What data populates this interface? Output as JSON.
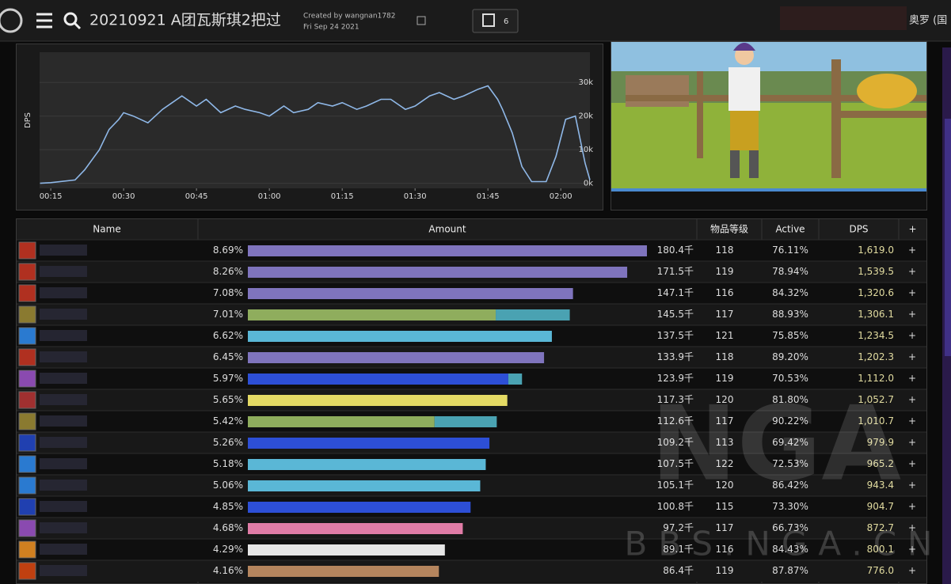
{
  "header": {
    "title": "20210921 A团瓦斯琪2把过",
    "created_by": "Created by wangnan1782",
    "date": "Fri Sep 24 2021",
    "twitch_count": "6",
    "user": "奥罗 (国"
  },
  "dps_chart": {
    "type": "line",
    "ylabel": "DPS",
    "color": "#8fb8e8",
    "x": [
      12.8,
      15,
      20,
      22,
      24,
      25,
      27,
      29,
      30,
      32,
      35,
      38,
      40,
      42,
      45,
      47,
      50,
      53,
      55,
      58,
      60,
      63,
      65,
      68,
      70,
      73,
      75,
      78,
      80,
      83,
      85,
      88,
      90,
      93,
      95,
      98,
      100,
      103,
      105,
      107,
      108,
      110,
      112,
      114,
      117,
      119,
      121,
      123,
      125,
      126
    ],
    "values": [
      0,
      0.2,
      1,
      4,
      8,
      10,
      16,
      19,
      21,
      20,
      18,
      22,
      24,
      26,
      23,
      25,
      21,
      23,
      22,
      21,
      20,
      23,
      21,
      22,
      24,
      23,
      24,
      22,
      23,
      25,
      25,
      22,
      23,
      26,
      27,
      25,
      26,
      28,
      29,
      25,
      22,
      15,
      5,
      0.5,
      0.5,
      8,
      19,
      20,
      6,
      1
    ],
    "xlim": [
      12.7,
      126
    ],
    "ylim": [
      -1.5,
      39
    ],
    "xticks": [
      {
        "value": 15,
        "label": "00:15"
      },
      {
        "value": 30,
        "label": "00:30"
      },
      {
        "value": 45,
        "label": "00:45"
      },
      {
        "value": 60,
        "label": "01:00"
      },
      {
        "value": 75,
        "label": "01:15"
      },
      {
        "value": 90,
        "label": "01:30"
      },
      {
        "value": 105,
        "label": "01:45"
      },
      {
        "value": 120,
        "label": "02:00"
      }
    ],
    "yticks": [
      {
        "value": 0,
        "label": "0k"
      },
      {
        "value": 10,
        "label": "10k"
      },
      {
        "value": 20,
        "label": "20k"
      },
      {
        "value": 30,
        "label": "30k"
      }
    ]
  },
  "table": {
    "columns": [
      "Name",
      "Amount",
      "物品等级",
      "Active",
      "DPS",
      "+"
    ],
    "rows": [
      {
        "icon_color": "#b03020",
        "percent": {
          "value": 8.69,
          "label": "8.69%"
        },
        "bar": [
          {
            "color": "#7f74bd",
            "share": 100
          }
        ],
        "amount": "180.4千",
        "ilvl": 118,
        "active": "76.11%",
        "dps": "1,619.0"
      },
      {
        "icon_color": "#b03020",
        "percent": {
          "value": 8.26,
          "label": "8.26%"
        },
        "bar": [
          {
            "color": "#7f74bd",
            "share": 100
          }
        ],
        "amount": "171.5千",
        "ilvl": 119,
        "active": "78.94%",
        "dps": "1,539.5"
      },
      {
        "icon_color": "#b03020",
        "percent": {
          "value": 7.08,
          "label": "7.08%"
        },
        "bar": [
          {
            "color": "#7f74bd",
            "share": 100
          }
        ],
        "amount": "147.1千",
        "ilvl": 116,
        "active": "84.32%",
        "dps": "1,320.6"
      },
      {
        "icon_color": "#8a7a30",
        "percent": {
          "value": 7.01,
          "label": "7.01%"
        },
        "bar": [
          {
            "color": "#8fad5d",
            "share": 77
          },
          {
            "color": "#4aa2b2",
            "share": 23
          }
        ],
        "amount": "145.5千",
        "ilvl": 117,
        "active": "88.93%",
        "dps": "1,306.1"
      },
      {
        "icon_color": "#2a7ad0",
        "percent": {
          "value": 6.62,
          "label": "6.62%"
        },
        "bar": [
          {
            "color": "#5ab7d6",
            "share": 100
          }
        ],
        "amount": "137.5千",
        "ilvl": 121,
        "active": "75.85%",
        "dps": "1,234.5"
      },
      {
        "icon_color": "#b03020",
        "percent": {
          "value": 6.45,
          "label": "6.45%"
        },
        "bar": [
          {
            "color": "#7f74bd",
            "share": 100
          }
        ],
        "amount": "133.9千",
        "ilvl": 118,
        "active": "89.20%",
        "dps": "1,202.3"
      },
      {
        "icon_color": "#8a4ab0",
        "percent": {
          "value": 5.97,
          "label": "5.97%"
        },
        "bar": [
          {
            "color": "#2d4fd6",
            "share": 95
          },
          {
            "color": "#4aa2b2",
            "share": 5
          }
        ],
        "amount": "123.9千",
        "ilvl": 119,
        "active": "70.53%",
        "dps": "1,112.0"
      },
      {
        "icon_color": "#a03030",
        "percent": {
          "value": 5.65,
          "label": "5.65%"
        },
        "bar": [
          {
            "color": "#e4da64",
            "share": 100
          }
        ],
        "amount": "117.3千",
        "ilvl": 120,
        "active": "81.80%",
        "dps": "1,052.7"
      },
      {
        "icon_color": "#8a7a30",
        "percent": {
          "value": 5.42,
          "label": "5.42%"
        },
        "bar": [
          {
            "color": "#8fad5d",
            "share": 75
          },
          {
            "color": "#4aa2b2",
            "share": 25
          }
        ],
        "amount": "112.6千",
        "ilvl": 117,
        "active": "90.22%",
        "dps": "1,010.7"
      },
      {
        "icon_color": "#2040b0",
        "percent": {
          "value": 5.26,
          "label": "5.26%"
        },
        "bar": [
          {
            "color": "#2d4fd6",
            "share": 100
          }
        ],
        "amount": "109.2千",
        "ilvl": 113,
        "active": "69.42%",
        "dps": "979.9"
      },
      {
        "icon_color": "#2a7ad0",
        "percent": {
          "value": 5.18,
          "label": "5.18%"
        },
        "bar": [
          {
            "color": "#5ab7d6",
            "share": 100
          }
        ],
        "amount": "107.5千",
        "ilvl": 122,
        "active": "72.53%",
        "dps": "965.2"
      },
      {
        "icon_color": "#2a7ad0",
        "percent": {
          "value": 5.06,
          "label": "5.06%"
        },
        "bar": [
          {
            "color": "#5ab7d6",
            "share": 100
          }
        ],
        "amount": "105.1千",
        "ilvl": 120,
        "active": "86.42%",
        "dps": "943.4"
      },
      {
        "icon_color": "#2040b0",
        "percent": {
          "value": 4.85,
          "label": "4.85%"
        },
        "bar": [
          {
            "color": "#2d4fd6",
            "share": 100
          }
        ],
        "amount": "100.8千",
        "ilvl": 115,
        "active": "73.30%",
        "dps": "904.7"
      },
      {
        "icon_color": "#8a4ab0",
        "percent": {
          "value": 4.68,
          "label": "4.68%"
        },
        "bar": [
          {
            "color": "#e07ca6",
            "share": 100
          }
        ],
        "amount": "97.2千",
        "ilvl": 117,
        "active": "66.73%",
        "dps": "872.7"
      },
      {
        "icon_color": "#d08020",
        "percent": {
          "value": 4.29,
          "label": "4.29%"
        },
        "bar": [
          {
            "color": "#e6e6e6",
            "share": 100
          }
        ],
        "amount": "89.1千",
        "ilvl": 116,
        "active": "84.43%",
        "dps": "800.1"
      },
      {
        "icon_color": "#c04010",
        "percent": {
          "value": 4.16,
          "label": "4.16%"
        },
        "bar": [
          {
            "color": "#b5855e",
            "share": 100
          }
        ],
        "amount": "86.4千",
        "ilvl": 119,
        "active": "87.87%",
        "dps": "776.0"
      }
    ]
  },
  "watermark": {
    "logo": "NGA",
    "site": "BBS.NGA.CN"
  }
}
